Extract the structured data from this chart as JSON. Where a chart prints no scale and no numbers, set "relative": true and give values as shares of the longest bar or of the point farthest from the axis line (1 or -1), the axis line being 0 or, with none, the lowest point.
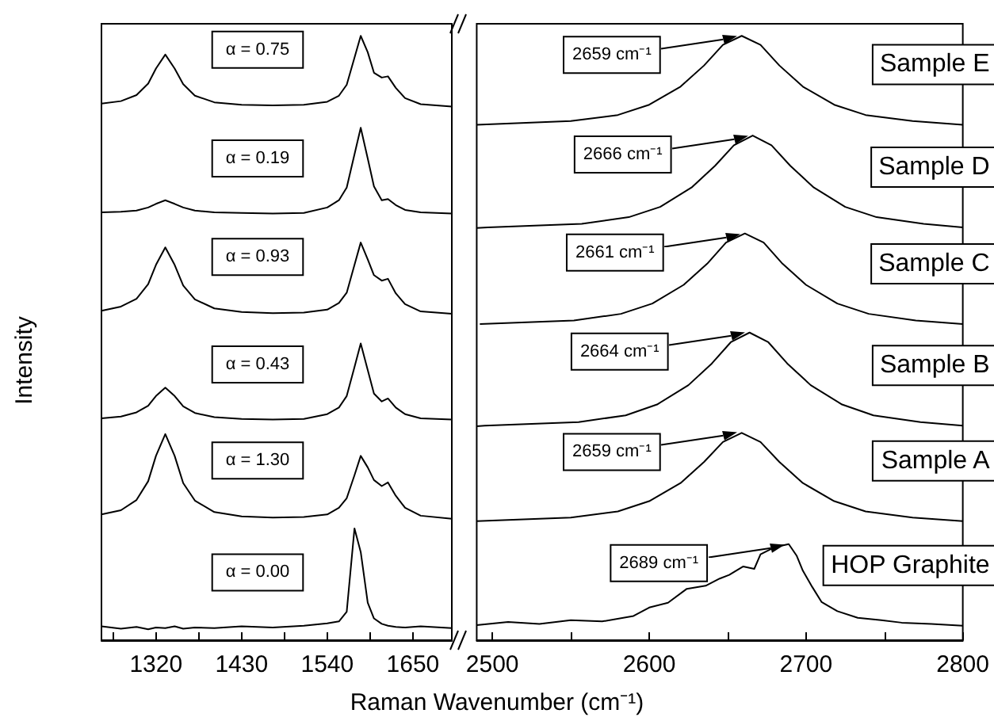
{
  "chart_data": [
    {
      "type": "line",
      "relative": true,
      "xlabel": "Raman Wavenumber (cm⁻¹)",
      "ylabel": "Intensity",
      "xlim": [
        1250,
        1700
      ],
      "xticks": [
        {
          "value": 1265,
          "label": null
        },
        1320,
        {
          "value": 1375,
          "label": null
        },
        1430,
        {
          "value": 1485,
          "label": null
        },
        1540,
        {
          "value": 1595,
          "label": null
        },
        1650
      ],
      "x": [
        1250,
        1275,
        1295,
        1310,
        1320,
        1332,
        1344,
        1355,
        1370,
        1395,
        1430,
        1470,
        1510,
        1540,
        1555,
        1565,
        1575,
        1583,
        1592,
        1600,
        1610,
        1618,
        1628,
        1640,
        1660,
        1700
      ],
      "series": [
        {
          "color": "#000000",
          "values": [
            0.888,
            0.892,
            0.902,
            0.921,
            0.946,
            0.969,
            0.946,
            0.92,
            0.901,
            0.89,
            0.886,
            0.885,
            0.886,
            0.891,
            0.901,
            0.919,
            0.964,
            1,
            0.973,
            0.939,
            0.931,
            0.933,
            0.914,
            0.897,
            0.887,
            0.883
          ]
        },
        {
          "color": "#000000",
          "values": [
            0.708,
            0.709,
            0.711,
            0.716,
            0.722,
            0.728,
            0.722,
            0.716,
            0.711,
            0.708,
            0.707,
            0.706,
            0.707,
            0.716,
            0.728,
            0.749,
            0.804,
            0.848,
            0.797,
            0.751,
            0.728,
            0.73,
            0.72,
            0.712,
            0.708,
            0.706
          ]
        },
        {
          "color": "#000000",
          "values": [
            0.545,
            0.552,
            0.565,
            0.589,
            0.621,
            0.65,
            0.621,
            0.587,
            0.564,
            0.549,
            0.543,
            0.541,
            0.542,
            0.547,
            0.558,
            0.575,
            0.621,
            0.658,
            0.63,
            0.604,
            0.595,
            0.598,
            0.574,
            0.556,
            0.544,
            0.54
          ]
        },
        {
          "color": "#000000",
          "values": [
            0.367,
            0.37,
            0.377,
            0.388,
            0.404,
            0.418,
            0.404,
            0.387,
            0.376,
            0.369,
            0.366,
            0.365,
            0.366,
            0.374,
            0.385,
            0.404,
            0.452,
            0.491,
            0.447,
            0.408,
            0.395,
            0.4,
            0.385,
            0.374,
            0.367,
            0.365
          ]
        },
        {
          "color": "#000000",
          "values": [
            0.208,
            0.215,
            0.232,
            0.263,
            0.305,
            0.341,
            0.305,
            0.26,
            0.231,
            0.212,
            0.205,
            0.203,
            0.204,
            0.208,
            0.219,
            0.235,
            0.273,
            0.305,
            0.286,
            0.265,
            0.255,
            0.261,
            0.239,
            0.219,
            0.206,
            0.201
          ]
        },
        {
          "color": "#000000",
          "values": [
            0.023,
            0.019,
            0.022,
            0.018,
            0.021,
            0.02,
            0.023,
            0.019,
            0.021,
            0.02,
            0.023,
            0.021,
            0.024,
            0.028,
            0.031,
            0.047,
            0.185,
            0.146,
            0.062,
            0.036,
            0.027,
            0.024,
            0.022,
            0.021,
            0.023,
            0.02
          ]
        }
      ],
      "annotations": [
        "α = 0.75",
        "α = 0.19",
        "α = 0.93",
        "α = 0.43",
        "α = 1.30",
        "α = 0.00"
      ]
    },
    {
      "type": "line",
      "relative": true,
      "xlim": [
        2490,
        2800
      ],
      "xticks": [
        2500,
        {
          "value": 2550,
          "label": null
        },
        2600,
        {
          "value": 2650,
          "label": null
        },
        2700,
        {
          "value": 2750,
          "label": null
        },
        2800
      ],
      "series": [
        {
          "name": "Sample E",
          "color": "#000000",
          "x": [
            2490,
            2550,
            2580,
            2600,
            2620,
            2635,
            2647,
            2659,
            2671,
            2683,
            2698,
            2718,
            2738,
            2768,
            2800
          ],
          "values": [
            0.853,
            0.859,
            0.869,
            0.886,
            0.916,
            0.951,
            0.985,
            1,
            0.985,
            0.951,
            0.916,
            0.886,
            0.869,
            0.859,
            0.853
          ]
        },
        {
          "name": "Sample D",
          "color": "#000000",
          "x": [
            2490,
            2497,
            2557,
            2587,
            2607,
            2627,
            2642,
            2654,
            2666,
            2678,
            2690,
            2705,
            2725,
            2745,
            2775,
            2800
          ],
          "values": [
            0.682,
            0.683,
            0.689,
            0.7,
            0.717,
            0.749,
            0.785,
            0.819,
            0.835,
            0.819,
            0.785,
            0.749,
            0.717,
            0.7,
            0.689,
            0.683
          ]
        },
        {
          "name": "Sample C",
          "color": "#000000",
          "x": [
            2492,
            2552,
            2582,
            2602,
            2622,
            2637,
            2649,
            2661,
            2673,
            2685,
            2700,
            2720,
            2740,
            2770,
            2800
          ],
          "values": [
            0.523,
            0.529,
            0.54,
            0.557,
            0.588,
            0.623,
            0.658,
            0.673,
            0.658,
            0.623,
            0.588,
            0.557,
            0.54,
            0.529,
            0.523
          ]
        },
        {
          "name": "Sample B",
          "color": "#000000",
          "x": [
            2490,
            2495,
            2555,
            2585,
            2605,
            2625,
            2640,
            2652,
            2664,
            2676,
            2688,
            2703,
            2723,
            2743,
            2773,
            2800
          ],
          "values": [
            0.354,
            0.355,
            0.361,
            0.372,
            0.39,
            0.422,
            0.458,
            0.493,
            0.509,
            0.493,
            0.458,
            0.422,
            0.39,
            0.372,
            0.361,
            0.355
          ]
        },
        {
          "name": "Sample A",
          "color": "#000000",
          "x": [
            2490,
            2550,
            2580,
            2600,
            2620,
            2635,
            2647,
            2659,
            2671,
            2683,
            2698,
            2718,
            2738,
            2768,
            2800
          ],
          "values": [
            0.197,
            0.203,
            0.213,
            0.23,
            0.26,
            0.295,
            0.328,
            0.343,
            0.328,
            0.295,
            0.26,
            0.23,
            0.213,
            0.203,
            0.197
          ]
        },
        {
          "name": "HOP Graphite",
          "color": "#000000",
          "x": [
            2490,
            2510,
            2530,
            2550,
            2570,
            2590,
            2600,
            2612,
            2624,
            2636,
            2645,
            2651,
            2660,
            2667,
            2671,
            2677,
            2682,
            2689,
            2694,
            2698,
            2704,
            2710,
            2720,
            2733,
            2748,
            2761,
            2780,
            2800
          ],
          "values": [
            0.025,
            0.03,
            0.027,
            0.033,
            0.031,
            0.04,
            0.054,
            0.062,
            0.085,
            0.09,
            0.102,
            0.108,
            0.122,
            0.118,
            0.142,
            0.15,
            0.155,
            0.159,
            0.14,
            0.115,
            0.088,
            0.063,
            0.048,
            0.037,
            0.033,
            0.029,
            0.027,
            0.024
          ]
        }
      ],
      "annotations": [
        "2659 cm⁻¹",
        "2666 cm⁻¹",
        "2661 cm⁻¹",
        "2664 cm⁻¹",
        "2659 cm⁻¹",
        "2689 cm⁻¹"
      ]
    }
  ]
}
